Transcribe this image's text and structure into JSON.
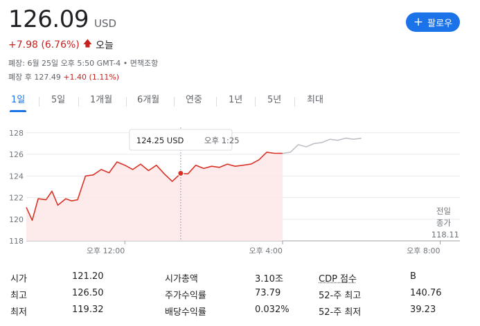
{
  "header": {
    "price": "126.09",
    "currency": "USD",
    "change": "+7.98 (6.76%)",
    "change_arrow_icon": "arrow-up-icon",
    "change_period": "오늘",
    "follow_label": "팔로우",
    "close_note": "폐장: 6월 25일 오후 5:50 GMT-4 • 면책조항",
    "after_hours_prefix": "폐장 후 127.49",
    "after_hours_change": "+1.40 (1.11%)"
  },
  "tabs": [
    {
      "label": "1일",
      "active": true
    },
    {
      "label": "5일",
      "active": false
    },
    {
      "label": "1개월",
      "active": false
    },
    {
      "label": "6개월",
      "active": false
    },
    {
      "label": "연중",
      "active": false
    },
    {
      "label": "1년",
      "active": false
    },
    {
      "label": "5년",
      "active": false
    },
    {
      "label": "최대",
      "active": false
    }
  ],
  "chart_data": {
    "type": "line",
    "y_ticks": [
      "128",
      "126",
      "124",
      "122",
      "120",
      "118"
    ],
    "ylim": [
      118,
      128.5
    ],
    "x_ticks": [
      "오후 12:00",
      "오후 4:00",
      "오후 8:00"
    ],
    "x_tick_hours": [
      12,
      16,
      20
    ],
    "x_range_hours": [
      9.5,
      20.5
    ],
    "tooltip": {
      "price": "124.25 USD",
      "time": "오후 1:25",
      "hour": 13.4167,
      "value": 124.25
    },
    "prev_close": {
      "label_line1": "전일",
      "label_line2": "종가",
      "value": "118.11"
    },
    "colors": {
      "regular": "#d93025",
      "after_hours": "#bdc1c6",
      "fill": "#fce8e6"
    },
    "regular_session": {
      "x": [
        9.5,
        9.65,
        9.8,
        10.0,
        10.15,
        10.3,
        10.5,
        10.65,
        10.8,
        11.0,
        11.2,
        11.4,
        11.6,
        11.8,
        12.0,
        12.2,
        12.4,
        12.6,
        12.8,
        13.0,
        13.2,
        13.42,
        13.6,
        13.8,
        14.0,
        14.2,
        14.4,
        14.6,
        14.8,
        15.0,
        15.2,
        15.4,
        15.6,
        15.8,
        16.0
      ],
      "y": [
        121.1,
        119.9,
        121.9,
        121.8,
        122.6,
        121.3,
        121.9,
        121.7,
        121.8,
        124.0,
        124.1,
        124.6,
        124.3,
        125.3,
        125.0,
        124.6,
        125.1,
        124.5,
        125.0,
        124.2,
        123.5,
        124.25,
        124.2,
        125.0,
        124.7,
        124.9,
        124.8,
        125.1,
        124.9,
        125.0,
        125.1,
        125.5,
        126.2,
        126.1,
        126.09
      ]
    },
    "after_hours": {
      "x": [
        16.0,
        16.2,
        16.4,
        16.6,
        16.8,
        17.0,
        17.2,
        17.4,
        17.6,
        17.8,
        18.0
      ],
      "y": [
        126.09,
        126.2,
        126.9,
        126.7,
        127.0,
        127.1,
        127.4,
        127.3,
        127.5,
        127.4,
        127.49
      ]
    }
  },
  "stats": {
    "rows": [
      [
        {
          "label": "시가",
          "value": "121.20"
        },
        {
          "label": "시가총액",
          "value": "3.10조"
        },
        {
          "label": "CDP 점수",
          "value": "B"
        }
      ],
      [
        {
          "label": "최고",
          "value": "126.50"
        },
        {
          "label": "주가수익률",
          "value": "73.79"
        },
        {
          "label": "52-주 최고",
          "value": "140.76"
        }
      ],
      [
        {
          "label": "최저",
          "value": "119.32"
        },
        {
          "label": "배당수익률",
          "value": "0.032%"
        },
        {
          "label": "52-주 최저",
          "value": "39.23"
        }
      ]
    ]
  }
}
